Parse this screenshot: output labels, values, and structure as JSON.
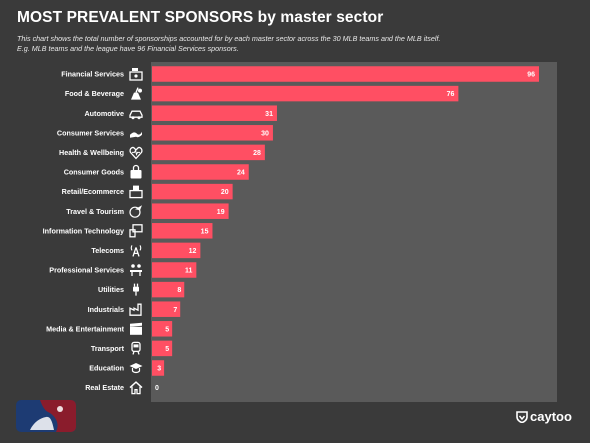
{
  "title": "MOST PREVALENT SPONSORS by master sector",
  "subtitle_line1": "This chart shows the total number of sponsorships accounted for by each master sector across the 30 MLB teams and the MLB itself.",
  "subtitle_line2": "E.g. MLB teams and the league have 96 Financial Services sponsors.",
  "brand": "caytoo",
  "colors": {
    "bar": "#ff4f63",
    "plot_bg": "#5a5a5a",
    "page_bg": "#3a3a3a",
    "text": "#ffffff"
  },
  "chart_data": {
    "type": "bar",
    "orientation": "horizontal",
    "categories": [
      "Financial Services",
      "Food & Beverage",
      "Automotive",
      "Consumer Services",
      "Health & Wellbeing",
      "Consumer Goods",
      "Retail/Ecommerce",
      "Travel & Tourism",
      "Information Technology",
      "Telecoms",
      "Professional Services",
      "Utilities",
      "Industrials",
      "Media & Entertainment",
      "Transport",
      "Education",
      "Real Estate"
    ],
    "values": [
      96,
      76,
      31,
      30,
      28,
      24,
      20,
      19,
      15,
      12,
      11,
      8,
      7,
      5,
      5,
      3,
      0
    ],
    "icons": [
      "cash-register-icon",
      "food-drink-icon",
      "car-icon",
      "handshake-icon",
      "heart-pulse-icon",
      "shopping-bag-icon",
      "shop-counter-icon",
      "plane-globe-icon",
      "devices-icon",
      "radio-tower-icon",
      "people-desk-icon",
      "power-plug-icon",
      "factory-icon",
      "clapperboard-icon",
      "train-icon",
      "graduation-cap-icon",
      "house-icon"
    ],
    "xlim": [
      0,
      100
    ],
    "data_labels": true,
    "grid": false,
    "legend": "none"
  }
}
